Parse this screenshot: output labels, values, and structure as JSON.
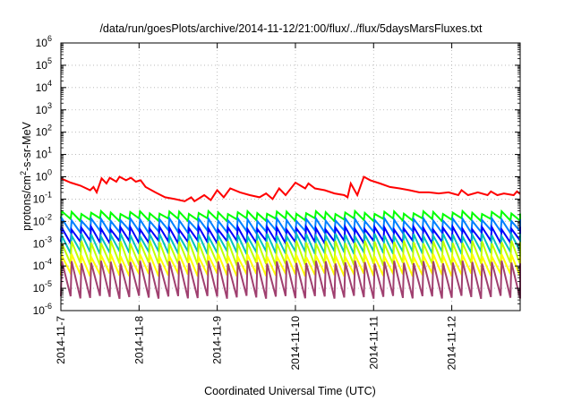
{
  "chart_data": {
    "type": "line",
    "title": "/data/run/goesPlots/archive/2014-11-12/21:00/flux/../flux/5daysMarsFluxes.txt",
    "xlabel": "Coordinated Universal Time (UTC)",
    "ylabel_parts": [
      "protons/cm",
      "2",
      "-s-sr-MeV"
    ],
    "y_scale": "log",
    "ylim": [
      1e-06,
      1000000.0
    ],
    "y_ticks": [
      {
        "value": -6,
        "label_base": "10",
        "label_exp": "-6"
      },
      {
        "value": -5,
        "label_base": "10",
        "label_exp": "-5"
      },
      {
        "value": -4,
        "label_base": "10",
        "label_exp": "-4"
      },
      {
        "value": -3,
        "label_base": "10",
        "label_exp": "-3"
      },
      {
        "value": -2,
        "label_base": "10",
        "label_exp": "-2"
      },
      {
        "value": -1,
        "label_base": "10",
        "label_exp": "-1"
      },
      {
        "value": 0,
        "label_base": "10",
        "label_exp": "0"
      },
      {
        "value": 1,
        "label_base": "10",
        "label_exp": "1"
      },
      {
        "value": 2,
        "label_base": "10",
        "label_exp": "2"
      },
      {
        "value": 3,
        "label_base": "10",
        "label_exp": "3"
      },
      {
        "value": 4,
        "label_base": "10",
        "label_exp": "4"
      },
      {
        "value": 5,
        "label_base": "10",
        "label_exp": "5"
      },
      {
        "value": 6,
        "label_base": "10",
        "label_exp": "6"
      }
    ],
    "xlim": [
      "2014-11-07T00:00",
      "2014-11-12T21:00"
    ],
    "x_ticks": [
      "2014-11-7",
      "2014-11-8",
      "2014-11-9",
      "2014-11-10",
      "2014-11-11",
      "2014-11-12"
    ],
    "grid": true,
    "series": [
      {
        "color": "#ff0000",
        "points": [
          [
            "2014-11-07T00:00",
            0.85
          ],
          [
            "2014-11-07T03:00",
            0.55
          ],
          [
            "2014-11-07T06:00",
            0.4
          ],
          [
            "2014-11-07T09:00",
            0.25
          ],
          [
            "2014-11-07T10:00",
            0.35
          ],
          [
            "2014-11-07T11:00",
            0.2
          ],
          [
            "2014-11-07T12:30",
            0.85
          ],
          [
            "2014-11-07T14:00",
            0.5
          ],
          [
            "2014-11-07T15:00",
            0.9
          ],
          [
            "2014-11-07T17:00",
            0.6
          ],
          [
            "2014-11-07T18:00",
            1.0
          ],
          [
            "2014-11-07T20:00",
            0.7
          ],
          [
            "2014-11-07T21:30",
            0.9
          ],
          [
            "2014-11-07T23:00",
            0.6
          ],
          [
            "2014-11-08T00:30",
            0.7
          ],
          [
            "2014-11-08T02:00",
            0.35
          ],
          [
            "2014-11-08T05:00",
            0.2
          ],
          [
            "2014-11-08T08:00",
            0.12
          ],
          [
            "2014-11-08T11:00",
            0.1
          ],
          [
            "2014-11-08T14:00",
            0.08
          ],
          [
            "2014-11-08T16:00",
            0.12
          ],
          [
            "2014-11-08T17:00",
            0.08
          ],
          [
            "2014-11-08T20:00",
            0.15
          ],
          [
            "2014-11-08T22:00",
            0.09
          ],
          [
            "2014-11-09T00:00",
            0.25
          ],
          [
            "2014-11-09T02:00",
            0.12
          ],
          [
            "2014-11-09T04:00",
            0.3
          ],
          [
            "2014-11-09T07:00",
            0.2
          ],
          [
            "2014-11-09T10:00",
            0.15
          ],
          [
            "2014-11-09T13:00",
            0.12
          ],
          [
            "2014-11-09T15:00",
            0.18
          ],
          [
            "2014-11-09T17:00",
            0.1
          ],
          [
            "2014-11-09T19:00",
            0.3
          ],
          [
            "2014-11-09T21:00",
            0.15
          ],
          [
            "2014-11-10T00:00",
            0.55
          ],
          [
            "2014-11-10T03:00",
            0.3
          ],
          [
            "2014-11-10T04:00",
            0.5
          ],
          [
            "2014-11-10T06:00",
            0.3
          ],
          [
            "2014-11-10T09:00",
            0.25
          ],
          [
            "2014-11-10T12:00",
            0.18
          ],
          [
            "2014-11-10T15:00",
            0.15
          ],
          [
            "2014-11-10T16:00",
            0.12
          ],
          [
            "2014-11-10T17:00",
            0.5
          ],
          [
            "2014-11-10T19:00",
            0.15
          ],
          [
            "2014-11-10T21:00",
            1.0
          ],
          [
            "2014-11-10T23:00",
            0.7
          ],
          [
            "2014-11-11T02:00",
            0.5
          ],
          [
            "2014-11-11T05:00",
            0.35
          ],
          [
            "2014-11-11T08:00",
            0.3
          ],
          [
            "2014-11-11T11:00",
            0.25
          ],
          [
            "2014-11-11T14:00",
            0.2
          ],
          [
            "2014-11-11T17:00",
            0.2
          ],
          [
            "2014-11-11T20:00",
            0.18
          ],
          [
            "2014-11-11T23:00",
            0.2
          ],
          [
            "2014-11-12T02:00",
            0.15
          ],
          [
            "2014-11-12T03:00",
            0.25
          ],
          [
            "2014-11-12T05:00",
            0.15
          ],
          [
            "2014-11-12T08:00",
            0.2
          ],
          [
            "2014-11-12T11:00",
            0.15
          ],
          [
            "2014-11-12T12:00",
            0.22
          ],
          [
            "2014-11-12T14:00",
            0.15
          ],
          [
            "2014-11-12T16:00",
            0.18
          ],
          [
            "2014-11-12T19:00",
            0.15
          ],
          [
            "2014-11-12T20:00",
            0.22
          ],
          [
            "2014-11-12T21:00",
            0.17
          ]
        ]
      },
      {
        "color": "#00ff00",
        "sawtooth": {
          "peak": 0.025,
          "trough": 0.012,
          "period_hours": 3.0
        }
      },
      {
        "color": "#0080ff",
        "sawtooth": {
          "peak": 0.012,
          "trough": 0.0035,
          "period_hours": 3.0
        }
      },
      {
        "color": "#0000ff",
        "sawtooth": {
          "peak": 0.005,
          "trough": 0.0012,
          "period_hours": 3.0
        }
      },
      {
        "color": "#00c0c0",
        "sawtooth": {
          "peak": 0.0025,
          "trough": 0.0004,
          "period_hours": 3.0
        }
      },
      {
        "color": "#c0ff00",
        "sawtooth": {
          "peak": 0.0012,
          "trough": 0.00012,
          "period_hours": 3.0
        }
      },
      {
        "color": "#ffff00",
        "sawtooth": {
          "peak": 0.0003,
          "trough": 4e-05,
          "period_hours": 3.0
        }
      },
      {
        "color": "#a04070",
        "sawtooth": {
          "peak": 0.00015,
          "trough": 4e-06,
          "period_hours": 3.0
        }
      }
    ]
  }
}
